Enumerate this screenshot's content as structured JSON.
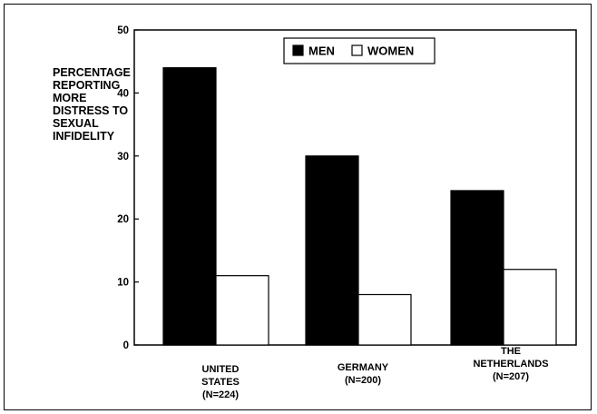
{
  "chart_data": {
    "type": "bar",
    "title": "",
    "xlabel": "",
    "ylabel": "PERCENTAGE\nREPORTING\nMORE\nDISTRESS TO\nSEXUAL\nINFIDELITY",
    "ylim": [
      0,
      50
    ],
    "yticks": [
      "0",
      "10",
      "20",
      "30",
      "40",
      "50"
    ],
    "categories": [
      [
        "UNITED",
        "STATES",
        "(N=224)"
      ],
      [
        "GERMANY",
        "(N=200)"
      ],
      [
        "THE",
        "NETHERLANDS",
        "(N=207)"
      ]
    ],
    "series": [
      {
        "name": "MEN",
        "color": "#000000",
        "values": [
          44,
          30,
          24.5
        ]
      },
      {
        "name": "WOMEN",
        "color": "#ffffff",
        "values": [
          11,
          8,
          12
        ]
      }
    ],
    "legend_position": "top-center",
    "grid": false
  }
}
